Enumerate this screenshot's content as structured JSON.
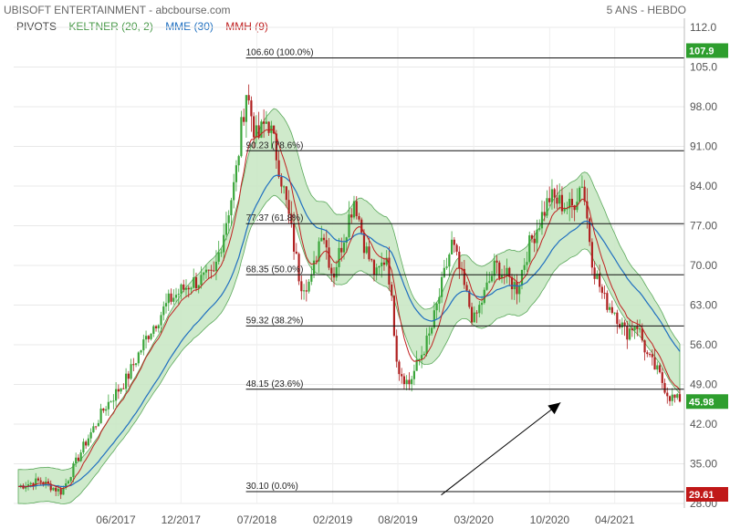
{
  "header": {
    "title": "UBISOFT ENTERTAINMENT - abcbourse.com",
    "period": "5 ANS - HEBDO"
  },
  "legend": {
    "pivots": "PIVOTS",
    "keltner": "KELTNER (20, 2)",
    "mme": "MME (30)",
    "mmh": "MMH (9)"
  },
  "colors": {
    "keltner_fill": "#c7e6c2",
    "keltner_line": "#5aa85a",
    "mme": "#1f6fc0",
    "mmh": "#c02020",
    "up_candle": "#3aa53a",
    "down_candle": "#b02020",
    "price_box_green": "#2e9e2e",
    "price_box_red": "#c01818"
  },
  "chart_data": {
    "type": "candlestick",
    "title": "UBISOFT ENTERTAINMENT",
    "timeframe": "5 ANS - HEBDO",
    "ylim": [
      28,
      112
    ],
    "y_ticks": [
      "112.0",
      "105.0",
      "98.00",
      "91.00",
      "84.00",
      "77.00",
      "70.00",
      "63.00",
      "56.00",
      "49.00",
      "42.00",
      "35.00",
      "28.00"
    ],
    "x_ticks": [
      "06/2017",
      "12/2017",
      "07/2018",
      "02/2019",
      "08/2019",
      "03/2020",
      "10/2020",
      "04/2021"
    ],
    "price_points": [
      {
        "date": "2016-09",
        "close": 31
      },
      {
        "date": "2016-11",
        "close": 32
      },
      {
        "date": "2017-01",
        "close": 30
      },
      {
        "date": "2017-03",
        "close": 38
      },
      {
        "date": "2017-05",
        "close": 45
      },
      {
        "date": "2017-07",
        "close": 50
      },
      {
        "date": "2017-09",
        "close": 58
      },
      {
        "date": "2017-11",
        "close": 64
      },
      {
        "date": "2018-01",
        "close": 67
      },
      {
        "date": "2018-03",
        "close": 68
      },
      {
        "date": "2018-05",
        "close": 85
      },
      {
        "date": "2018-06",
        "close": 101
      },
      {
        "date": "2018-07",
        "close": 92
      },
      {
        "date": "2018-08",
        "close": 96
      },
      {
        "date": "2018-09",
        "close": 88
      },
      {
        "date": "2018-10",
        "close": 78
      },
      {
        "date": "2018-11",
        "close": 67
      },
      {
        "date": "2018-12",
        "close": 67
      },
      {
        "date": "2019-01",
        "close": 77
      },
      {
        "date": "2019-02",
        "close": 68
      },
      {
        "date": "2019-04",
        "close": 82
      },
      {
        "date": "2019-05",
        "close": 73
      },
      {
        "date": "2019-06",
        "close": 68
      },
      {
        "date": "2019-07",
        "close": 72
      },
      {
        "date": "2019-08",
        "close": 52
      },
      {
        "date": "2019-09",
        "close": 49
      },
      {
        "date": "2019-11",
        "close": 58
      },
      {
        "date": "2020-01",
        "close": 74
      },
      {
        "date": "2020-03",
        "close": 60
      },
      {
        "date": "2020-05",
        "close": 70
      },
      {
        "date": "2020-07",
        "close": 66
      },
      {
        "date": "2020-08",
        "close": 73
      },
      {
        "date": "2020-10",
        "close": 82
      },
      {
        "date": "2020-12",
        "close": 80
      },
      {
        "date": "2021-01",
        "close": 85
      },
      {
        "date": "2021-02",
        "close": 70
      },
      {
        "date": "2021-03",
        "close": 64
      },
      {
        "date": "2021-04",
        "close": 62
      },
      {
        "date": "2021-05",
        "close": 58
      },
      {
        "date": "2021-06",
        "close": 60
      },
      {
        "date": "2021-07",
        "close": 54
      },
      {
        "date": "2021-08",
        "close": 51
      },
      {
        "date": "2021-09",
        "close": 47
      },
      {
        "date": "2021-10",
        "close": 45.98
      }
    ],
    "fibonacci": [
      {
        "value": 106.6,
        "label": "106.60  (100.0%)"
      },
      {
        "value": 90.23,
        "label": "90.23  (78.6%)"
      },
      {
        "value": 77.37,
        "label": "77.37  (61.8%)"
      },
      {
        "value": 68.35,
        "label": "68.35  (50.0%)"
      },
      {
        "value": 59.32,
        "label": "59.32  (38.2%)"
      },
      {
        "value": 48.15,
        "label": "48.15  (23.6%)"
      },
      {
        "value": 30.1,
        "label": "30.10  (0.0%)"
      }
    ],
    "price_labels": [
      {
        "value": 107.9,
        "label": "107.9",
        "color": "green"
      },
      {
        "value": 45.98,
        "label": "45.98",
        "color": "green"
      },
      {
        "value": 29.61,
        "label": "29.61",
        "color": "red"
      }
    ],
    "arrow": {
      "from": {
        "date": "2019-12",
        "price": 29.5
      },
      "to": {
        "date": "2020-11",
        "price": 45.8
      }
    }
  }
}
